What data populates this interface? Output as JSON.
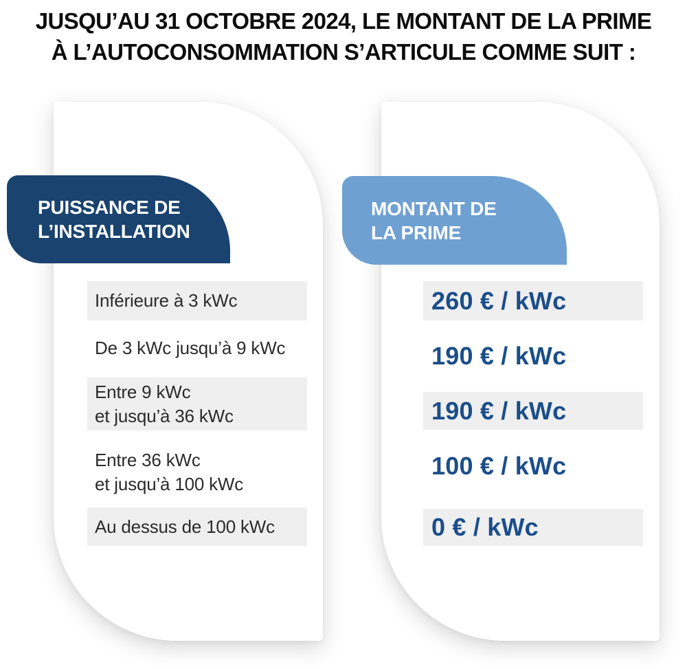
{
  "title": {
    "line1": "JUSQU’AU 31 OCTOBRE 2024, LE MONTANT DE LA PRIME",
    "line2": "À L’AUTOCONSOMMATION S’ARTICULE COMME SUIT :"
  },
  "power_column": {
    "header_line1": "PUISSANCE DE",
    "header_line2": "L’INSTALLATION",
    "rows": [
      {
        "line1": "Inférieure à 3 kWc",
        "line2": ""
      },
      {
        "line1": "De 3 kWc jusqu’à 9 kWc",
        "line2": ""
      },
      {
        "line1": "Entre 9 kWc",
        "line2": "et jusqu’à 36 kWc"
      },
      {
        "line1": "Entre 36 kWc",
        "line2": "et jusqu’à 100 kWc"
      },
      {
        "line1": "Au dessus de 100 kWc",
        "line2": ""
      }
    ]
  },
  "prime_column": {
    "header_line1": "MONTANT DE",
    "header_line2": "LA PRIME",
    "rows": [
      {
        "value": "260 € / kWc"
      },
      {
        "value": "190 € / kWc"
      },
      {
        "value": "190 € / kWc"
      },
      {
        "value": "100 € / kWc"
      },
      {
        "value": "0 € / kWc"
      }
    ]
  },
  "colors": {
    "navy_badge": "#1a436f",
    "light_blue_badge": "#6fa0d2",
    "value_blue": "#1b4e8a",
    "row_gray": "#efefef",
    "title_black": "#0d0d0d",
    "card_white": "#ffffff"
  },
  "chart_data": {
    "type": "table",
    "title": "Jusqu’au 31 octobre 2024, le montant de la prime à l’autoconsommation s’articule comme suit :",
    "columns": [
      "Puissance de l’installation",
      "Montant de la prime"
    ],
    "rows": [
      [
        "Inférieure à 3 kWc",
        "260 € / kWc"
      ],
      [
        "De 3 kWc jusqu’à 9 kWc",
        "190 € / kWc"
      ],
      [
        "Entre 9 kWc et jusqu’à 36 kWc",
        "190 € / kWc"
      ],
      [
        "Entre 36 kWc et jusqu’à 100 kWc",
        "100 € / kWc"
      ],
      [
        "Au dessus de 100 kWc",
        "0 € / kWc"
      ]
    ],
    "values_eur_per_kwc": [
      260,
      190,
      190,
      100,
      0
    ],
    "power_tiers_kwc": [
      [
        0,
        3
      ],
      [
        3,
        9
      ],
      [
        9,
        36
      ],
      [
        36,
        100
      ],
      [
        100,
        null
      ]
    ]
  }
}
